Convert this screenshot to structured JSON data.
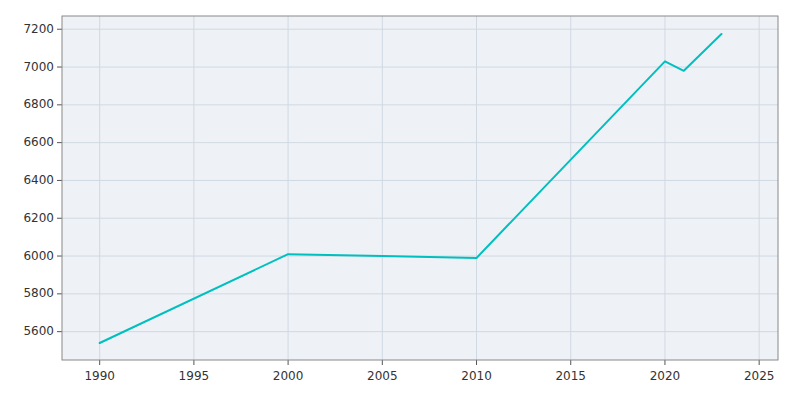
{
  "chart_data": {
    "type": "line",
    "x": [
      1990,
      2000,
      2005,
      2010,
      2020,
      2021,
      2023
    ],
    "values": [
      5540,
      6010,
      6000,
      5990,
      7030,
      6980,
      7175
    ],
    "color": "#00BFBF",
    "xlim": [
      1988,
      2026
    ],
    "ylim": [
      5450,
      7270
    ],
    "xticks": [
      1990,
      1995,
      2000,
      2005,
      2010,
      2015,
      2020,
      2025
    ],
    "yticks": [
      5600,
      5800,
      6000,
      6200,
      6400,
      6600,
      6800,
      7000,
      7200
    ],
    "grid": true
  }
}
